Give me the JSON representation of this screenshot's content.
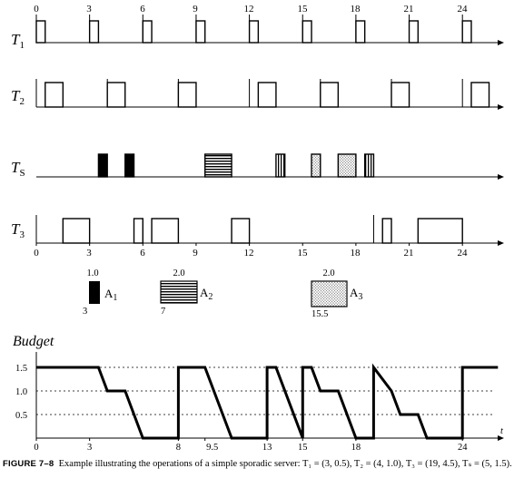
{
  "figure": {
    "caption_number": "FIGURE 7–8",
    "caption_text": "Example illustrating the operations of a simple sporadic server: T₁ = (3, 0.5), T₂ = (4, 1.0), T₃ = (19, 4.5), Tₛ = (5, 1.5)."
  },
  "top_axis_ticks": [
    "0",
    "3",
    "6",
    "9",
    "12",
    "15",
    "18",
    "21",
    "24"
  ],
  "tasks": [
    {
      "id": "T1",
      "label": "T",
      "sub": "1"
    },
    {
      "id": "T2",
      "label": "T",
      "sub": "2"
    },
    {
      "id": "TS",
      "label": "T",
      "sub": "S"
    },
    {
      "id": "T3",
      "label": "T",
      "sub": "3"
    }
  ],
  "timeline_ticks": [
    "0",
    "3",
    "6",
    "9",
    "12",
    "15",
    "18",
    "21",
    "24"
  ],
  "schedule": {
    "T1": {
      "releases": [
        0,
        3,
        6,
        9,
        12,
        15,
        18,
        21,
        24
      ],
      "execs": [
        [
          0,
          0.5
        ],
        [
          3,
          3.5
        ],
        [
          6,
          6.5
        ],
        [
          9,
          9.5
        ],
        [
          12,
          12.5
        ],
        [
          15,
          15.5
        ],
        [
          18,
          18.5
        ],
        [
          21,
          21.5
        ],
        [
          24,
          24.5
        ]
      ],
      "fill": "white"
    },
    "T2": {
      "releases": [
        0,
        4,
        8,
        12,
        16,
        20,
        24
      ],
      "execs": [
        [
          0.5,
          1.5
        ],
        [
          4,
          5
        ],
        [
          8,
          9
        ],
        [
          12.5,
          13.5
        ],
        [
          16,
          17
        ],
        [
          20,
          21
        ],
        [
          24.5,
          25.5
        ]
      ],
      "fill": "white"
    },
    "TS": {
      "releases": [],
      "execs": [
        [
          3.5,
          4
        ],
        [
          5,
          5.5
        ],
        [
          9.5,
          11
        ],
        [
          13.5,
          14
        ],
        [
          15.5,
          16
        ],
        [
          17,
          18
        ],
        [
          18.5,
          19
        ]
      ],
      "fills": [
        "black",
        "black",
        "hlines",
        "vlines",
        "dots",
        "dots",
        "vlines"
      ]
    },
    "T3": {
      "releases": [
        0,
        19
      ],
      "execs": [
        [
          1.5,
          3
        ],
        [
          5.5,
          6
        ],
        [
          6.5,
          8
        ],
        [
          11,
          12
        ],
        [
          19.5,
          20
        ],
        [
          21.5,
          24
        ]
      ],
      "fill": "white"
    }
  },
  "aperiodic_jobs": [
    {
      "name": "A",
      "sub": "1",
      "exec": "1.0",
      "release": "3",
      "fill": "black"
    },
    {
      "name": "A",
      "sub": "2",
      "exec": "2.0",
      "release": "7",
      "fill": "hlines"
    },
    {
      "name": "A",
      "sub": "3",
      "exec": "2.0",
      "release": "15.5",
      "fill": "dots"
    }
  ],
  "budget": {
    "title": "Budget",
    "y_ticks": [
      "1.5",
      "1.0",
      "0.5"
    ],
    "x_ticks": [
      "0",
      "3",
      "8",
      "9.5",
      "13",
      "15",
      "18",
      "24"
    ],
    "x_axis_label": "t",
    "curve": [
      [
        0,
        1.5
      ],
      [
        3.5,
        1.5
      ],
      [
        4,
        1.0
      ],
      [
        5,
        1.0
      ],
      [
        6,
        0.0
      ],
      [
        8,
        0.0
      ],
      [
        8,
        1.5
      ],
      [
        9.5,
        1.5
      ],
      [
        11,
        0.0
      ],
      [
        13,
        0.0
      ],
      [
        13,
        1.5
      ],
      [
        13.5,
        1.5
      ],
      [
        15,
        0.0
      ],
      [
        15,
        1.5
      ],
      [
        15.5,
        1.5
      ],
      [
        16,
        1.0
      ],
      [
        17,
        1.0
      ],
      [
        18,
        0.0
      ],
      [
        19,
        0.0
      ],
      [
        19,
        1.5
      ],
      [
        20,
        1.0
      ],
      [
        20.5,
        0.5
      ],
      [
        21.5,
        0.5
      ],
      [
        22,
        0.0
      ],
      [
        24,
        0.0
      ],
      [
        24,
        1.5
      ],
      [
        26,
        1.5
      ]
    ]
  },
  "colors": {
    "ink": "#000000",
    "background": "#ffffff"
  }
}
